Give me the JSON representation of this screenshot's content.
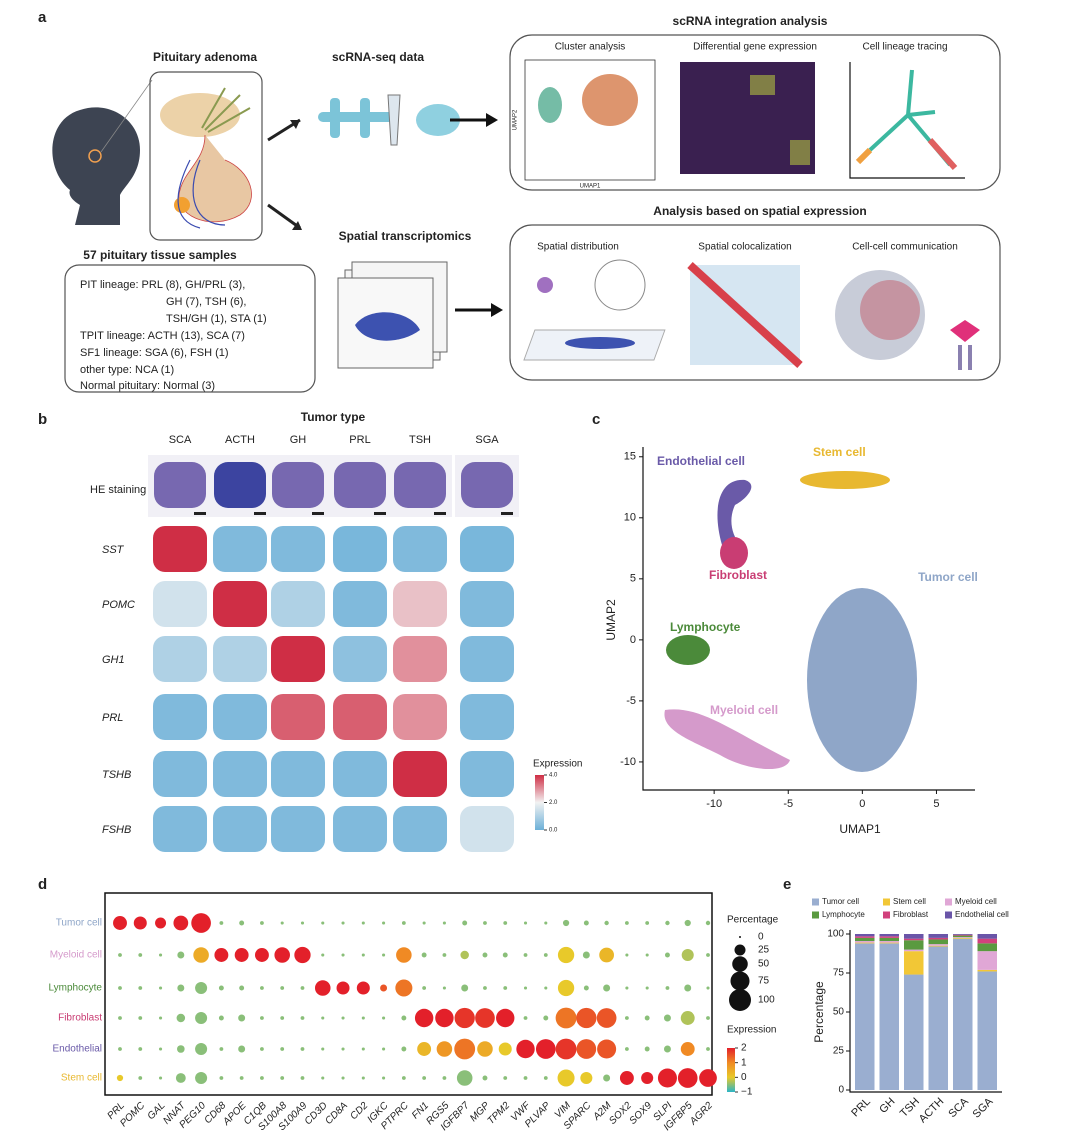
{
  "panel_a": {
    "label": "a",
    "integration_title": "scRNA integration analysis",
    "adenoma": "Pituitary adenoma",
    "scrna": "scRNA-seq data",
    "spatial": "Spatial transcriptomics",
    "spatial_title": "Analysis based on spatial expression",
    "integration": [
      "Cluster analysis",
      "Differential gene expression",
      "Cell lineage tracing"
    ],
    "spatial_steps": [
      "Spatial distribution",
      "Spatial colocalization",
      "Cell-cell communication"
    ],
    "umap_axes": [
      "UMAP2",
      "UMAP1"
    ],
    "samples_title": "57 pituitary tissue samples",
    "samples": [
      "PIT lineage:  PRL (8), GH/PRL (3),",
      "GH (7), TSH (6),",
      "TSH/GH (1), STA (1)",
      "TPIT lineage:  ACTH (13), SCA (7)",
      "SF1 lineage:  SGA (6), FSH (1)",
      "other type: NCA (1)",
      "Normal pituitary: Normal (3)"
    ]
  },
  "panel_b": {
    "label": "b",
    "title": "Tumor type",
    "tumors": [
      "SCA",
      "ACTH",
      "GH",
      "PRL",
      "TSH",
      "SGA"
    ],
    "he": "HE staining",
    "genes": [
      "SST",
      "POMC",
      "GH1",
      "PRL",
      "TSHB",
      "FSHB"
    ],
    "expression": [
      [
        4,
        0.3,
        0.3,
        0.2,
        0.3,
        0.2
      ],
      [
        1.5,
        4,
        1,
        0.3,
        2.5,
        0.3
      ],
      [
        1,
        1,
        4,
        0.5,
        3,
        0.3
      ],
      [
        0.3,
        0.3,
        3.5,
        3.5,
        3,
        0.3
      ],
      [
        0.3,
        0.3,
        0.3,
        0.3,
        4,
        0.3
      ],
      [
        0.3,
        0.3,
        0.3,
        0.3,
        0.3,
        1.5
      ]
    ],
    "legend_title": "Expression",
    "ticks": [
      {
        "value": 4,
        "label": "4.0"
      },
      {
        "value": 2,
        "label": "2.0"
      },
      {
        "value": 0,
        "label": "0.0"
      }
    ],
    "lim": [
      0,
      4
    ]
  },
  "chart_data": [
    {
      "type": "scatter",
      "label": "c",
      "xlabel": "UMAP1",
      "ylabel": "UMAP2",
      "xlim": [
        -14.8,
        7.6
      ],
      "ylim": [
        -12.3,
        15.8
      ],
      "xticks": [
        -10,
        -5,
        0,
        5
      ],
      "yticks": [
        -10,
        -5,
        0,
        5,
        10,
        15
      ],
      "series": [
        {
          "name": "Endothelial cell",
          "color": "#6a5aa8"
        },
        {
          "name": "Stem cell",
          "color": "#e8b830"
        },
        {
          "name": "Fibroblast",
          "color": "#c93d73"
        },
        {
          "name": "Tumor cell",
          "color": "#8fa6c8"
        },
        {
          "name": "Lymphocyte",
          "color": "#4b8a3a"
        },
        {
          "name": "Myeloid cell",
          "color": "#d59acb"
        }
      ]
    },
    {
      "type": "dot",
      "label": "d",
      "categories": [
        "PRL",
        "POMC",
        "GAL",
        "NNAT",
        "PEG10",
        "CD68",
        "APOE",
        "C1QB",
        "S100A8",
        "S100A9",
        "CD3D",
        "CD8A",
        "CD2",
        "IGKC",
        "PTPRC",
        "FN1",
        "RGS5",
        "IGFBP7",
        "MGP",
        "TPM2",
        "VWF",
        "PLVAP",
        "VIM",
        "SPARC",
        "A2M",
        "SOX2",
        "SOX9",
        "SLPI",
        "IGFBP5",
        "AGR2"
      ],
      "series": [
        {
          "name": "Tumor cell",
          "color": "#8fa6c8",
          "values": [
            40,
            35,
            25,
            45,
            80,
            3,
            5,
            3,
            2,
            2,
            2,
            2,
            2,
            2,
            3,
            2,
            2,
            5,
            3,
            3,
            2,
            2,
            8,
            5,
            4,
            3,
            3,
            4,
            8,
            4
          ],
          "expression": [
            2,
            2,
            2,
            2,
            2,
            -0.5,
            -0.5,
            -0.5,
            -0.5,
            -0.5,
            -0.5,
            -0.5,
            -0.5,
            -0.5,
            -0.5,
            -0.5,
            -0.5,
            -0.5,
            -0.5,
            -0.5,
            -0.5,
            -0.5,
            -0.5,
            -0.5,
            -0.5,
            -0.5,
            -0.5,
            -0.5,
            -0.5,
            -0.5
          ]
        },
        {
          "name": "Myeloid cell",
          "color": "#d59acb",
          "values": [
            3,
            3,
            2,
            10,
            50,
            40,
            40,
            40,
            50,
            55,
            2,
            2,
            2,
            2,
            50,
            5,
            3,
            15,
            5,
            5,
            3,
            3,
            55,
            10,
            45,
            2,
            2,
            5,
            30,
            3
          ],
          "expression": [
            -0.5,
            -0.5,
            -0.5,
            -0.5,
            0.5,
            2,
            2,
            2,
            2,
            2,
            -0.5,
            -0.5,
            -0.5,
            -0.5,
            1,
            -0.5,
            -0.5,
            -0.3,
            -0.5,
            -0.5,
            -0.5,
            -0.5,
            0,
            -0.5,
            0.3,
            -0.5,
            -0.5,
            -0.5,
            -0.3,
            -0.5
          ]
        },
        {
          "name": "Lymphocyte",
          "color": "#4b8a3a",
          "values": [
            3,
            3,
            2,
            10,
            30,
            5,
            5,
            3,
            3,
            3,
            50,
            35,
            35,
            10,
            60,
            3,
            2,
            10,
            3,
            3,
            2,
            2,
            55,
            5,
            10,
            2,
            2,
            3,
            10,
            2
          ],
          "expression": [
            -0.5,
            -0.5,
            -0.5,
            -0.5,
            -0.5,
            -0.5,
            -0.5,
            -0.5,
            -0.5,
            -0.5,
            2,
            2,
            2,
            1.5,
            1.2,
            -0.5,
            -0.5,
            -0.5,
            -0.5,
            -0.5,
            -0.5,
            -0.5,
            0,
            -0.5,
            -0.5,
            -0.5,
            -0.5,
            -0.5,
            -0.5,
            -0.5
          ]
        },
        {
          "name": "Fibroblast",
          "color": "#c93d73",
          "values": [
            3,
            3,
            2,
            15,
            30,
            5,
            10,
            3,
            3,
            3,
            2,
            2,
            2,
            2,
            5,
            70,
            70,
            85,
            80,
            70,
            3,
            5,
            90,
            85,
            80,
            3,
            5,
            10,
            40,
            3
          ],
          "expression": [
            -0.5,
            -0.5,
            -0.5,
            -0.5,
            -0.5,
            -0.5,
            -0.5,
            -0.5,
            -0.5,
            -0.5,
            -0.5,
            -0.5,
            -0.5,
            -0.5,
            -0.5,
            2,
            2,
            1.8,
            1.8,
            2,
            -0.5,
            -0.5,
            1.2,
            1.5,
            1.5,
            -0.5,
            -0.5,
            -0.5,
            -0.3,
            -0.5
          ]
        },
        {
          "name": "Endothelial",
          "color": "#6a5aa8",
          "values": [
            3,
            3,
            2,
            12,
            30,
            3,
            10,
            3,
            3,
            3,
            2,
            2,
            2,
            2,
            5,
            40,
            50,
            90,
            50,
            35,
            70,
            80,
            90,
            80,
            75,
            3,
            5,
            10,
            40,
            3
          ],
          "expression": [
            -0.5,
            -0.5,
            -0.5,
            -0.5,
            -0.5,
            -0.5,
            -0.5,
            -0.5,
            -0.5,
            -0.5,
            -0.5,
            -0.5,
            -0.5,
            -0.5,
            -0.5,
            0.3,
            0.8,
            1.2,
            0.5,
            0,
            2,
            2,
            1.8,
            1.5,
            1.5,
            -0.5,
            -0.5,
            -0.5,
            1,
            -0.5
          ]
        },
        {
          "name": "Stem cell",
          "color": "#e8b830",
          "values": [
            8,
            3,
            2,
            20,
            30,
            3,
            3,
            3,
            3,
            3,
            2,
            2,
            2,
            2,
            3,
            3,
            3,
            50,
            5,
            3,
            3,
            3,
            60,
            30,
            10,
            40,
            30,
            75,
            80,
            65
          ],
          "expression": [
            0,
            -0.5,
            -0.5,
            -0.5,
            -0.5,
            -0.5,
            -0.5,
            -0.5,
            -0.5,
            -0.5,
            -0.5,
            -0.5,
            -0.5,
            -0.5,
            -0.5,
            -0.5,
            -0.5,
            -0.5,
            -0.5,
            -0.5,
            -0.5,
            -0.5,
            0,
            0,
            -0.5,
            2,
            2,
            2,
            2,
            2
          ]
        }
      ],
      "size_title": "Percentage",
      "size_ticks": [
        0,
        25,
        50,
        75,
        100
      ],
      "size_lim": [
        0,
        100
      ],
      "color_title": "Expression",
      "color_ticks": [
        2,
        1,
        0,
        {
          "value": -1,
          "label": "−1"
        }
      ],
      "color_lim": [
        -1,
        2
      ]
    },
    {
      "type": "stacked_bar",
      "label": "e",
      "ylabel": "Percentage",
      "categories": [
        "PRL",
        "GH",
        "TSH",
        "ACTH",
        "SCA",
        "SGA"
      ],
      "ylim": [
        0,
        100
      ],
      "yticks": [
        0,
        25,
        50,
        75,
        100
      ],
      "series": [
        {
          "name": "Tumor cell",
          "color": "#9aaed0",
          "values": [
            94,
            94,
            74,
            92,
            97,
            76
          ]
        },
        {
          "name": "Stem cell",
          "color": "#f2c736",
          "values": [
            0.5,
            0.5,
            15,
            0.5,
            0.5,
            1
          ]
        },
        {
          "name": "Myeloid cell",
          "color": "#e0a7d6",
          "values": [
            1,
            1,
            1,
            1,
            0.5,
            12
          ]
        },
        {
          "name": "Lymphocyte",
          "color": "#5a9a40",
          "values": [
            2,
            2,
            6,
            3,
            1,
            5
          ]
        },
        {
          "name": "Fibroblast",
          "color": "#d1417c",
          "values": [
            1,
            1,
            1,
            1,
            0.5,
            3
          ]
        },
        {
          "name": "Endothelial cell",
          "color": "#6a55a8",
          "values": [
            1.5,
            1.5,
            3,
            2.5,
            0.5,
            3
          ]
        }
      ]
    }
  ]
}
